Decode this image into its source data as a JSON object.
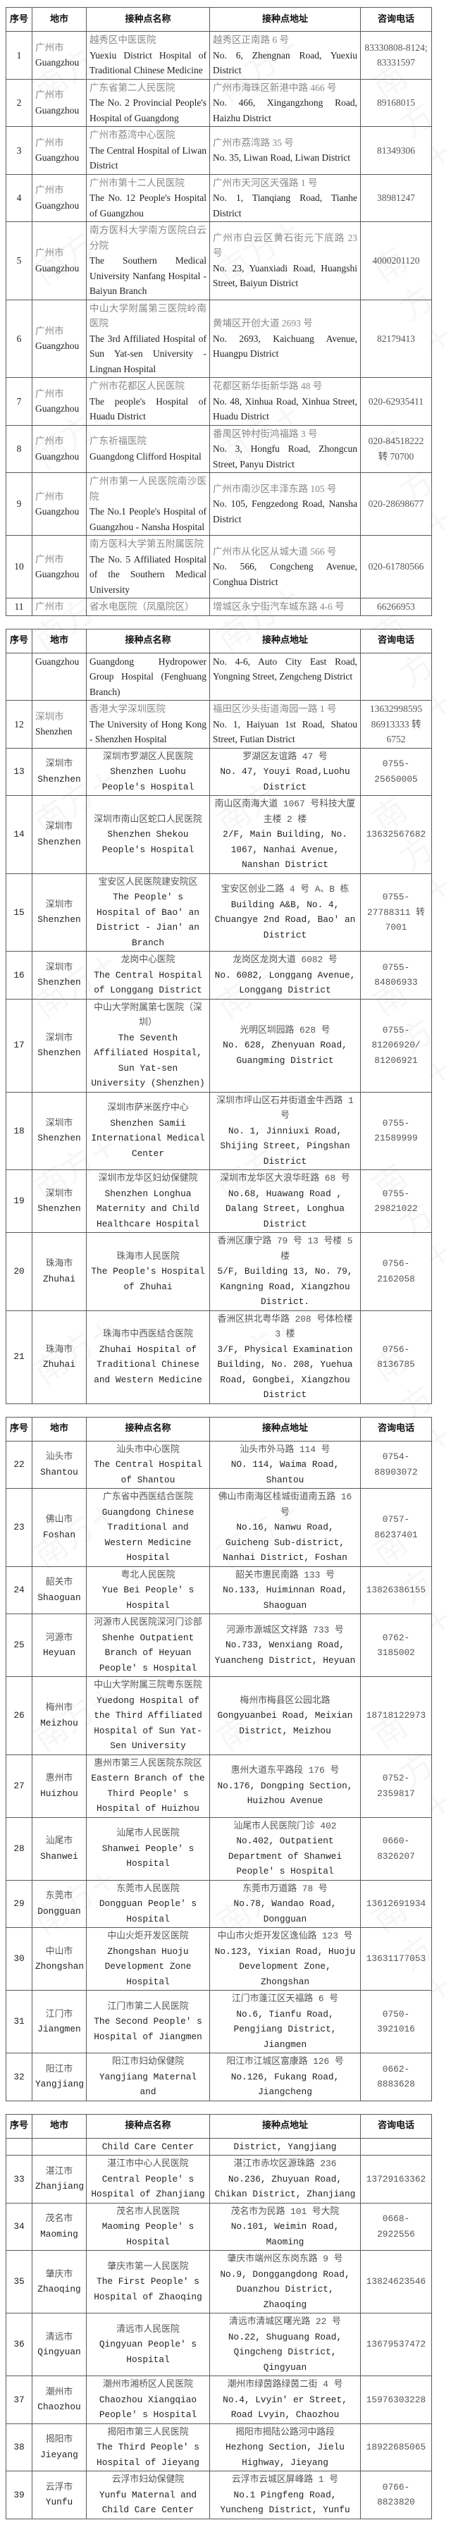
{
  "headers": [
    "序号",
    "地市",
    "接种点名称",
    "接种点地址",
    "咨询电话"
  ],
  "tables": [
    {
      "rows": [
        {
          "no": "1",
          "city_zh": "广州市",
          "city_en": "Guangzhou",
          "name_zh": "越秀区中医医院",
          "name_en": "Yuexiu District Hospital of Traditional Chinese Medicine",
          "addr_zh": "越秀区正南路 6 号",
          "addr_en": "No. 6, Zhengnan Road, Yuexiu District",
          "phone": "83330808-8124; 83331597"
        },
        {
          "no": "2",
          "city_zh": "广州市",
          "city_en": "Guangzhou",
          "name_zh": "广东省第二人民医院",
          "name_en": "The No. 2  Provincial People's Hospital of Guangdong",
          "addr_zh": "广州市海珠区新港中路 466 号",
          "addr_en": "No. 466, Xingangzhong Road, Haizhu District",
          "phone": "89168015"
        },
        {
          "no": "3",
          "city_zh": "广州市",
          "city_en": "Guangzhou",
          "name_zh": "广州市荔湾中心医院",
          "name_en": "The Central Hospital of Liwan District",
          "addr_zh": "广州市荔湾路 35 号",
          "addr_en": "No. 35, Liwan Road, Liwan District",
          "phone": "81349306"
        },
        {
          "no": "4",
          "city_zh": "广州市",
          "city_en": "Guangzhou",
          "name_zh": "广州市第十二人民医院",
          "name_en": "The No. 12 People's Hospital of Guangzhou",
          "addr_zh": "广州市天河区天强路 1 号",
          "addr_en": "No. 1, Tianqiang Road, Tianhe District",
          "phone": "38981247"
        },
        {
          "no": "5",
          "city_zh": "广州市",
          "city_en": "Guangzhou",
          "name_zh": "南方医科大学南方医院白云分院",
          "name_en": "The Southern Medical University Nanfang Hospital - Baiyun Branch",
          "addr_zh": "广州市白云区黄石街元下底路 23 号",
          "addr_en": "No. 23, Yuanxiadi Road, Huangshi Street, Baiyun District",
          "phone": "4000201120"
        },
        {
          "no": "6",
          "city_zh": "广州市",
          "city_en": "Guangzhou",
          "name_zh": "中山大学附属第三医院岭南医院",
          "name_en": "The 3rd Affiliated Hospital of Sun Yat-sen University - Lingnan Hospital",
          "addr_zh": "黄埔区开创大道 2693 号",
          "addr_en": "No. 2693, Kaichuang Avenue, Huangpu District",
          "phone": "82179413"
        },
        {
          "no": "7",
          "city_zh": "广州市",
          "city_en": "Guangzhou",
          "name_zh": "广州市花都区人民医院",
          "name_en": "The people's Hospital of Huadu District",
          "addr_zh": "花都区新华街新华路 48 号",
          "addr_en": "No. 48, Xinhua Road, Xinhua Street, Huadu District",
          "phone": "020-62935411"
        },
        {
          "no": "8",
          "city_zh": "广州市",
          "city_en": "Guangzhou",
          "name_zh": "广东祈福医院",
          "name_en": "Guangdong Clifford Hospital",
          "addr_zh": "番禺区钟村街鸿福路 3 号",
          "addr_en": "No. 3, Hongfu Road, Zhongcun Street, Panyu District",
          "phone": "020-84518222 转 70700"
        },
        {
          "no": "9",
          "city_zh": "广州市",
          "city_en": "Guangzhou",
          "name_zh": "广州市第一人民医院南沙医院",
          "name_en": "The No.1 People's Hospital of Guangzhou - Nansha Hospital",
          "addr_zh": "广州市南沙区丰泽东路 105 号",
          "addr_en": "No. 105, Fengzedong Road, Nansha District",
          "phone": "020-28698677"
        },
        {
          "no": "10",
          "city_zh": "广州市",
          "city_en": "Guangzhou",
          "name_zh": "南方医科大学第五附属医院",
          "name_en": "The No. 5 Affiliated Hospital of the Southern Medical University",
          "addr_zh": "广州市从化区从城大道 566 号",
          "addr_en": "No. 566, Congcheng Avenue, Conghua District",
          "phone": "020-61780566"
        },
        {
          "no": "11",
          "city_zh": "广州市",
          "city_en": "",
          "name_zh": "省水电医院（凤凰院区）",
          "name_en": "",
          "addr_zh": "增城区永宁街汽车城东路 4-6 号",
          "addr_en": "",
          "phone": "66266953"
        }
      ]
    },
    {
      "rows": [
        {
          "no": "",
          "city_zh": "",
          "city_en": "Guangzhou",
          "name_zh": "",
          "name_en": "Guangdong Hydropower Group Hospital (Fenghuang Branch)",
          "addr_zh": "",
          "addr_en": "No. 4-6, Auto City East Road, Yongning Street, Zengcheng District",
          "phone": "",
          "cont": true
        },
        {
          "no": "12",
          "city_zh": "深圳市",
          "city_en": "Shenzhen",
          "name_zh": "香港大学深圳医院",
          "name_en": "The University of Hong Kong - Shenzhen Hospital",
          "addr_zh": "福田区沙头街道海园一路 1 号",
          "addr_en": "No. 1, Haiyuan 1st Road, Shatou Street, Futian District",
          "phone": "13632998595 86913333 转 6752"
        },
        {
          "no": "13",
          "city_zh": "深圳市",
          "city_en": "Shenzhen",
          "name_zh": "深圳市罗湖区人民医院",
          "name_en": "Shenzhen Luohu People's Hospital",
          "addr_zh": "罗湖区友谊路 47 号",
          "addr_en": "No. 47, Youyi Road,Luohu District",
          "phone": "0755-25650005"
        },
        {
          "no": "14",
          "city_zh": "深圳市",
          "city_en": "Shenzhen",
          "name_zh": "深圳市南山区蛇口人民医院",
          "name_en": "Shenzhen Shekou People's Hospital",
          "addr_zh": "南山区南海大道 1067 号科技大厦主楼 2 楼",
          "addr_en": "2/F, Main Building, No. 1067, Nanhai Avenue, Nanshan District",
          "phone": "13632567682"
        },
        {
          "no": "15",
          "city_zh": "深圳市",
          "city_en": "Shenzhen",
          "name_zh": "宝安区人民医院建安院区",
          "name_en": "The People' s Hospital of Bao' an District - Jian' an Branch",
          "addr_zh": "宝安区创业二路 4 号 A、B 栋",
          "addr_en": "Building A&B, No. 4, Chuangye 2nd Road, Bao' an District",
          "phone": "0755-27788311 转 7001"
        },
        {
          "no": "16",
          "city_zh": "深圳市",
          "city_en": "Shenzhen",
          "name_zh": "龙岗中心医院",
          "name_en": "The Central Hospital of Longgang District",
          "addr_zh": "龙岗区龙岗大道 6082 号",
          "addr_en": "No. 6082, Longgang Avenue, Longgang District",
          "phone": "0755-84806933"
        },
        {
          "no": "17",
          "city_zh": "深圳市",
          "city_en": "Shenzhen",
          "name_zh": "中山大学附属第七医院（深圳）",
          "name_en": "The Seventh Affiliated Hospital, Sun Yat-sen University (Shenzhen)",
          "addr_zh": "光明区圳园路 628 号",
          "addr_en": "No. 628, Zhenyuan Road, Guangming District",
          "phone": "0755-81206920/ 81206921"
        },
        {
          "no": "18",
          "city_zh": "深圳市",
          "city_en": "Shenzhen",
          "name_zh": "深圳市萨米医疗中心",
          "name_en": "Shenzhen Samii International Medical Center",
          "addr_zh": "深圳市坪山区石井街道金牛西路 1 号",
          "addr_en": "No. 1, Jinniuxi Road, Shijing Street, Pingshan District",
          "phone": "0755-21589999"
        },
        {
          "no": "19",
          "city_zh": "深圳市",
          "city_en": "Shenzhen",
          "name_zh": "深圳市龙华区妇幼保健院",
          "name_en": "Shenzhen Longhua Maternity and Child Healthcare Hospital",
          "addr_zh": "深圳市龙华区大浪华旺路 68 号",
          "addr_en": "No.68, Huawang Road , Dalang Street, Longhua District",
          "phone": "0755-29821022"
        },
        {
          "no": "20",
          "city_zh": "珠海市",
          "city_en": "Zhuhai",
          "name_zh": "珠海市人民医院",
          "name_en": "The People's Hospital of Zhuhai",
          "addr_zh": "香洲区康宁路 79 号 13 号楼 5 楼",
          "addr_en": "5/F, Building 13, No. 79, Kangning Road, Xiangzhou District.",
          "phone": "0756-2162058"
        },
        {
          "no": "21",
          "city_zh": "珠海市",
          "city_en": "Zhuhai",
          "name_zh": "珠海市中西医结合医院",
          "name_en": "Zhuhai Hospital of Traditional Chinese and Western Medicine",
          "addr_zh": "香洲区拱北粤华路 208 号体检楼 3 楼",
          "addr_en": "3/F, Physical Examination Building, No. 208, Yuehua Road, Gongbei, Xiangzhou District",
          "phone": "0756- 8136785"
        }
      ]
    },
    {
      "rows": [
        {
          "no": "22",
          "city_zh": "汕头市",
          "city_en": "Shantou",
          "name_zh": "汕头市中心医院",
          "name_en": "The Central Hospital of Shantou",
          "addr_zh": "汕头市外马路 114 号",
          "addr_en": "NO. 114, Waima Road, Shantou",
          "phone": "0754-88903072"
        },
        {
          "no": "23",
          "city_zh": "佛山市",
          "city_en": "Foshan",
          "name_zh": "广东省中西医结合医院",
          "name_en": "Guangdong Chinese Traditional and Western Medicine Hospital",
          "addr_zh": "佛山市南海区桂城街道南五路 16 号",
          "addr_en": "No.16, Nanwu Road, Guicheng Sub-district, Nanhai District, Foshan",
          "phone": "0757-86237401"
        },
        {
          "no": "24",
          "city_zh": "韶关市",
          "city_en": "Shaoguan",
          "name_zh": "粤北人民医院",
          "name_en": "Yue Bei People' s Hospital",
          "addr_zh": "韶关市惠民南路 133 号",
          "addr_en": "No.133, Huiminnan Road, Shaoguan",
          "phone": "13826386155"
        },
        {
          "no": "25",
          "city_zh": "河源市",
          "city_en": "Heyuan",
          "name_zh": "河源市人民医院深河门诊部",
          "name_en": "Shenhe Outpatient Branch of Heyuan People' s Hospital",
          "addr_zh": "河源市源城区文祥路 733 号",
          "addr_en": "No.733, Wenxiang Road, Yuancheng District, Heyuan",
          "phone": "0762-3185002"
        },
        {
          "no": "26",
          "city_zh": "梅州市",
          "city_en": "Meizhou",
          "name_zh": "中山大学附属三院粤东医院",
          "name_en": "Yuedong Hospital of the Third Affiliated Hospital of Sun Yat-Sen University",
          "addr_zh": "梅州市梅县区公园北路",
          "addr_en": "Gongyuanbei Road, Meixian District, Meizhou",
          "phone": "18718122973"
        },
        {
          "no": "27",
          "city_zh": "惠州市",
          "city_en": "Huizhou",
          "name_zh": "惠州市第三人民医院东院区",
          "name_en": "Eastern Branch of the Third People' s Hospital of Huizhou",
          "addr_zh": "惠州大道东平路段 176 号",
          "addr_en": "No.176, Dongping Section, Huizhou Avenue",
          "phone": "0752-2359817"
        },
        {
          "no": "28",
          "city_zh": "汕尾市",
          "city_en": "Shanwei",
          "name_zh": "汕尾市人民医院",
          "name_en": "Shanwei People' s Hospital",
          "addr_zh": "汕尾市人民医院门诊 402",
          "addr_en": "No.402, Outpatient Department of Shanwei People' s Hospital",
          "phone": "0660-8326207"
        },
        {
          "no": "29",
          "city_zh": "东莞市",
          "city_en": "Dongguan",
          "name_zh": "东莞市人民医院",
          "name_en": "Dongguan People' s Hospital",
          "addr_zh": "东莞市万道路 78 号",
          "addr_en": "No.78, Wandao Road, Dongguan",
          "phone": "13612691934"
        },
        {
          "no": "30",
          "city_zh": "中山市",
          "city_en": "Zhongshan",
          "name_zh": "中山火炬开发区医院",
          "name_en": "Zhongshan Huoju Development Zone Hospital",
          "addr_zh": "中山市火炬开发区逸仙路 123 号",
          "addr_en": "No.123, Yixian Road, Huoju Development Zone, Zhongshan",
          "phone": "13631177053"
        },
        {
          "no": "31",
          "city_zh": "江门市",
          "city_en": "Jiangmen",
          "name_zh": "江门市第二人民医院",
          "name_en": "The Second People' s Hospital of Jiangmen",
          "addr_zh": "江门市蓬江区天福路 6 号",
          "addr_en": "No.6, Tianfu Road, Pengjiang District, Jiangmen",
          "phone": "0750-3921016"
        },
        {
          "no": "32",
          "city_zh": "阳江市",
          "city_en": "Yangjiang",
          "name_zh": "阳江市妇幼保健院",
          "name_en": "Yangjiang Maternal and",
          "addr_zh": "阳江市江城区富康路 126 号",
          "addr_en": "No.126, Fukang Road, Jiangcheng",
          "phone": "0662-8883628"
        }
      ]
    },
    {
      "rows": [
        {
          "no": "",
          "city_zh": "",
          "city_en": "",
          "name_zh": "",
          "name_en": "Child Care Center",
          "addr_zh": "",
          "addr_en": "District, Yangjiang",
          "phone": ""
        },
        {
          "no": "33",
          "city_zh": "湛江市",
          "city_en": "Zhanjiang",
          "name_zh": "湛江市中心人民医院",
          "name_en": "Central People' s Hospital of Zhanjiang",
          "addr_zh": "湛江市赤坎区源珠路 236",
          "addr_en": "No.236, Zhuyuan Road, Chikan District, Zhanjiang",
          "phone": "13729163362"
        },
        {
          "no": "34",
          "city_zh": "茂名市",
          "city_en": "Maoming",
          "name_zh": "茂名市人民医院",
          "name_en": "Maoming People' s Hospital",
          "addr_zh": "茂名市为民路 101 号大院",
          "addr_en": "No.101, Weimin Road, Maoming",
          "phone": "0668-2922556"
        },
        {
          "no": "35",
          "city_zh": "肇庆市",
          "city_en": "Zhaoqing",
          "name_zh": "肇庆市第一人民医院",
          "name_en": "The First People' s Hospital of Zhaoqing",
          "addr_zh": "肇庆市端州区东岗东路 9 号",
          "addr_en": "No.9, Donggangdong Road, Duanzhou District, Zhaoqing",
          "phone": "13824623546"
        },
        {
          "no": "36",
          "city_zh": "清远市",
          "city_en": "Qingyuan",
          "name_zh": "清远市人民医院",
          "name_en": "Qingyuan People' s Hospital",
          "addr_zh": "清远市清城区曙光路 22 号",
          "addr_en": "No.22, Shuguang Road, Qingcheng District, Qingyuan",
          "phone": "13679537472"
        },
        {
          "no": "37",
          "city_zh": "潮州市",
          "city_en": "Chaozhou",
          "name_zh": "潮州市湘桥区人民医院",
          "name_en": "Chaozhou Xiangqiao People' s Hospital",
          "addr_zh": "潮州市绿茵路绿茵二街 4 号",
          "addr_en": "No.4, Lvyin' er Street, Road Lvyin, Chaozhou",
          "phone": "15976303228"
        },
        {
          "no": "38",
          "city_zh": "揭阳市",
          "city_en": "Jieyang",
          "name_zh": "揭阳市第三人民医院",
          "name_en": "The Third People' s Hospital of Jieyang",
          "addr_zh": "揭阳市揭陆公路河中路段",
          "addr_en": "Hezhong Section, Jielu Highway, Jieyang",
          "phone": "18922685065"
        },
        {
          "no": "39",
          "city_zh": "云浮市",
          "city_en": "Yunfu",
          "name_zh": "云浮市妇幼保健院",
          "name_en": "Yunfu Maternal and Child Care Center",
          "addr_zh": "云浮市云城区屏峰路 1 号",
          "addr_en": "No.1 Pingfeng Road, Yuncheng District, Yunfu",
          "phone": "0766-8823820"
        }
      ]
    }
  ],
  "colors": {
    "border": "#5a5a5a",
    "text": "#222222",
    "chinese_text_muted": "#8a8a8a"
  }
}
